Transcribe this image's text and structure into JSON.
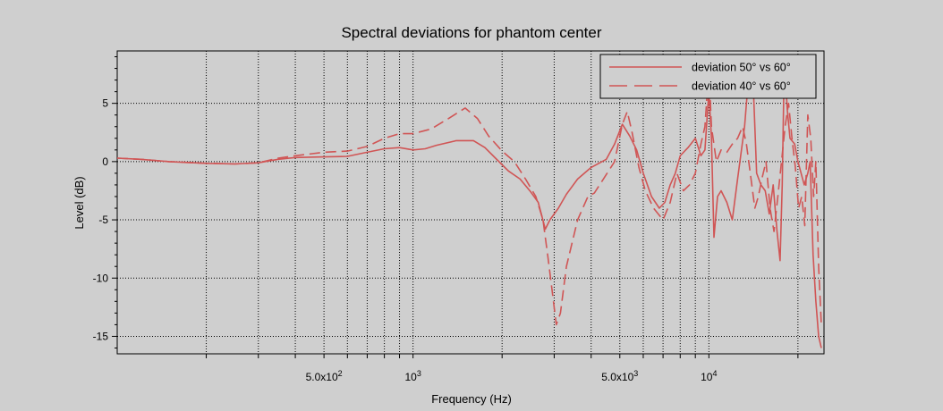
{
  "chart_data": {
    "type": "line",
    "title": "Spectral deviations for phantom center",
    "xlabel": "Frequency (Hz)",
    "ylabel": "Level (dB)",
    "x_scale": "log",
    "xlim": [
      100,
      24500
    ],
    "ylim": [
      -16.5,
      9.5
    ],
    "grid": true,
    "legend_position": "top-right",
    "x_tick_labels": [
      {
        "value": 500,
        "base": "5.0x10",
        "exp": "2"
      },
      {
        "value": 1000,
        "base": "10",
        "exp": "3"
      },
      {
        "value": 5000,
        "base": "5.0x10",
        "exp": "3"
      },
      {
        "value": 10000,
        "base": "10",
        "exp": "4"
      }
    ],
    "y_ticks": [
      5,
      0,
      -5,
      -10,
      -15
    ],
    "series_color": "#d05555",
    "series": [
      {
        "name": "deviation 50° vs 60°",
        "style": "solid",
        "points": [
          [
            100,
            0.3
          ],
          [
            120,
            0.2
          ],
          [
            150,
            0
          ],
          [
            200,
            -0.15
          ],
          [
            250,
            -0.2
          ],
          [
            300,
            -0.1
          ],
          [
            350,
            0.2
          ],
          [
            400,
            0.35
          ],
          [
            500,
            0.4
          ],
          [
            600,
            0.45
          ],
          [
            700,
            0.8
          ],
          [
            800,
            1.1
          ],
          [
            900,
            1.2
          ],
          [
            1000,
            1.0
          ],
          [
            1100,
            1.1
          ],
          [
            1200,
            1.4
          ],
          [
            1400,
            1.8
          ],
          [
            1600,
            1.8
          ],
          [
            1750,
            1.2
          ],
          [
            1900,
            0.3
          ],
          [
            2100,
            -0.8
          ],
          [
            2300,
            -1.5
          ],
          [
            2500,
            -2.6
          ],
          [
            2650,
            -3.5
          ],
          [
            2800,
            -5.8
          ],
          [
            2900,
            -5
          ],
          [
            3100,
            -4
          ],
          [
            3300,
            -2.8
          ],
          [
            3600,
            -1.5
          ],
          [
            4000,
            -0.5
          ],
          [
            4500,
            0.2
          ],
          [
            4800,
            1.5
          ],
          [
            5100,
            3.2
          ],
          [
            5400,
            2.2
          ],
          [
            5700,
            1
          ],
          [
            6000,
            -1
          ],
          [
            6400,
            -3
          ],
          [
            6800,
            -4
          ],
          [
            7100,
            -3.5
          ],
          [
            7400,
            -2
          ],
          [
            7700,
            -1
          ],
          [
            8000,
            0.5
          ],
          [
            8500,
            1.2
          ],
          [
            9000,
            2
          ],
          [
            9400,
            0.5
          ],
          [
            9700,
            1
          ],
          [
            10000,
            6
          ],
          [
            10200,
            2
          ],
          [
            10400,
            -6.5
          ],
          [
            10700,
            -3
          ],
          [
            11000,
            -2.5
          ],
          [
            11500,
            -3.5
          ],
          [
            12000,
            -5
          ],
          [
            12500,
            -1.5
          ],
          [
            13200,
            3
          ],
          [
            13700,
            8
          ],
          [
            14100,
            7
          ],
          [
            14500,
            -1
          ],
          [
            15000,
            -2
          ],
          [
            15500,
            -2.5
          ],
          [
            16000,
            -4.5
          ],
          [
            16500,
            -2
          ],
          [
            17000,
            -6
          ],
          [
            17400,
            -8.5
          ],
          [
            17700,
            -2
          ],
          [
            18000,
            9
          ],
          [
            18400,
            4.5
          ],
          [
            18800,
            2
          ],
          [
            19500,
            1.5
          ],
          [
            20000,
            0
          ],
          [
            21000,
            -2
          ],
          [
            21600,
            -1
          ],
          [
            22000,
            0
          ],
          [
            22500,
            -8
          ],
          [
            23000,
            -12
          ],
          [
            23500,
            -15
          ],
          [
            24000,
            -16
          ]
        ]
      },
      {
        "name": "deviation 40° vs 60°",
        "style": "dashed",
        "points": [
          [
            100,
            0.3
          ],
          [
            120,
            0.2
          ],
          [
            150,
            0
          ],
          [
            200,
            -0.15
          ],
          [
            250,
            -0.2
          ],
          [
            300,
            -0.1
          ],
          [
            350,
            0.3
          ],
          [
            400,
            0.5
          ],
          [
            500,
            0.8
          ],
          [
            600,
            0.9
          ],
          [
            700,
            1.3
          ],
          [
            800,
            2.0
          ],
          [
            900,
            2.4
          ],
          [
            1000,
            2.4
          ],
          [
            1150,
            2.8
          ],
          [
            1300,
            3.6
          ],
          [
            1500,
            4.6
          ],
          [
            1650,
            3.7
          ],
          [
            1800,
            2.2
          ],
          [
            2000,
            0.9
          ],
          [
            2200,
            0
          ],
          [
            2400,
            -1.5
          ],
          [
            2600,
            -3
          ],
          [
            2750,
            -5
          ],
          [
            2850,
            -8
          ],
          [
            2950,
            -11
          ],
          [
            3050,
            -14
          ],
          [
            3150,
            -13
          ],
          [
            3300,
            -9
          ],
          [
            3600,
            -5
          ],
          [
            3900,
            -3
          ],
          [
            4100,
            -2.7
          ],
          [
            4400,
            -1.5
          ],
          [
            4800,
            0
          ],
          [
            5100,
            3.2
          ],
          [
            5300,
            4.3
          ],
          [
            5500,
            2.5
          ],
          [
            5800,
            -0.5
          ],
          [
            6100,
            -2.5
          ],
          [
            6500,
            -4
          ],
          [
            7000,
            -5
          ],
          [
            7400,
            -3.5
          ],
          [
            7800,
            -1
          ],
          [
            8200,
            -2.5
          ],
          [
            8600,
            -2
          ],
          [
            9000,
            -1
          ],
          [
            9400,
            1.5
          ],
          [
            9700,
            3
          ],
          [
            10000,
            8
          ],
          [
            10200,
            3
          ],
          [
            10600,
            0
          ],
          [
            11000,
            1
          ],
          [
            11500,
            0.8
          ],
          [
            12000,
            1.5
          ],
          [
            12500,
            2
          ],
          [
            13000,
            3
          ],
          [
            13400,
            1.5
          ],
          [
            13800,
            -1
          ],
          [
            14300,
            -4
          ],
          [
            14700,
            -3
          ],
          [
            15100,
            -1.5
          ],
          [
            15600,
            0
          ],
          [
            16100,
            -4
          ],
          [
            16600,
            -6
          ],
          [
            17100,
            -3
          ],
          [
            17600,
            0
          ],
          [
            18100,
            3
          ],
          [
            18600,
            5
          ],
          [
            19100,
            2
          ],
          [
            19600,
            -0.5
          ],
          [
            20100,
            -4
          ],
          [
            20600,
            -3
          ],
          [
            21100,
            -5.5
          ],
          [
            21600,
            4
          ],
          [
            22100,
            2
          ],
          [
            22600,
            -3
          ],
          [
            23000,
            0
          ],
          [
            23500,
            -9
          ],
          [
            24000,
            -14
          ]
        ]
      }
    ]
  }
}
